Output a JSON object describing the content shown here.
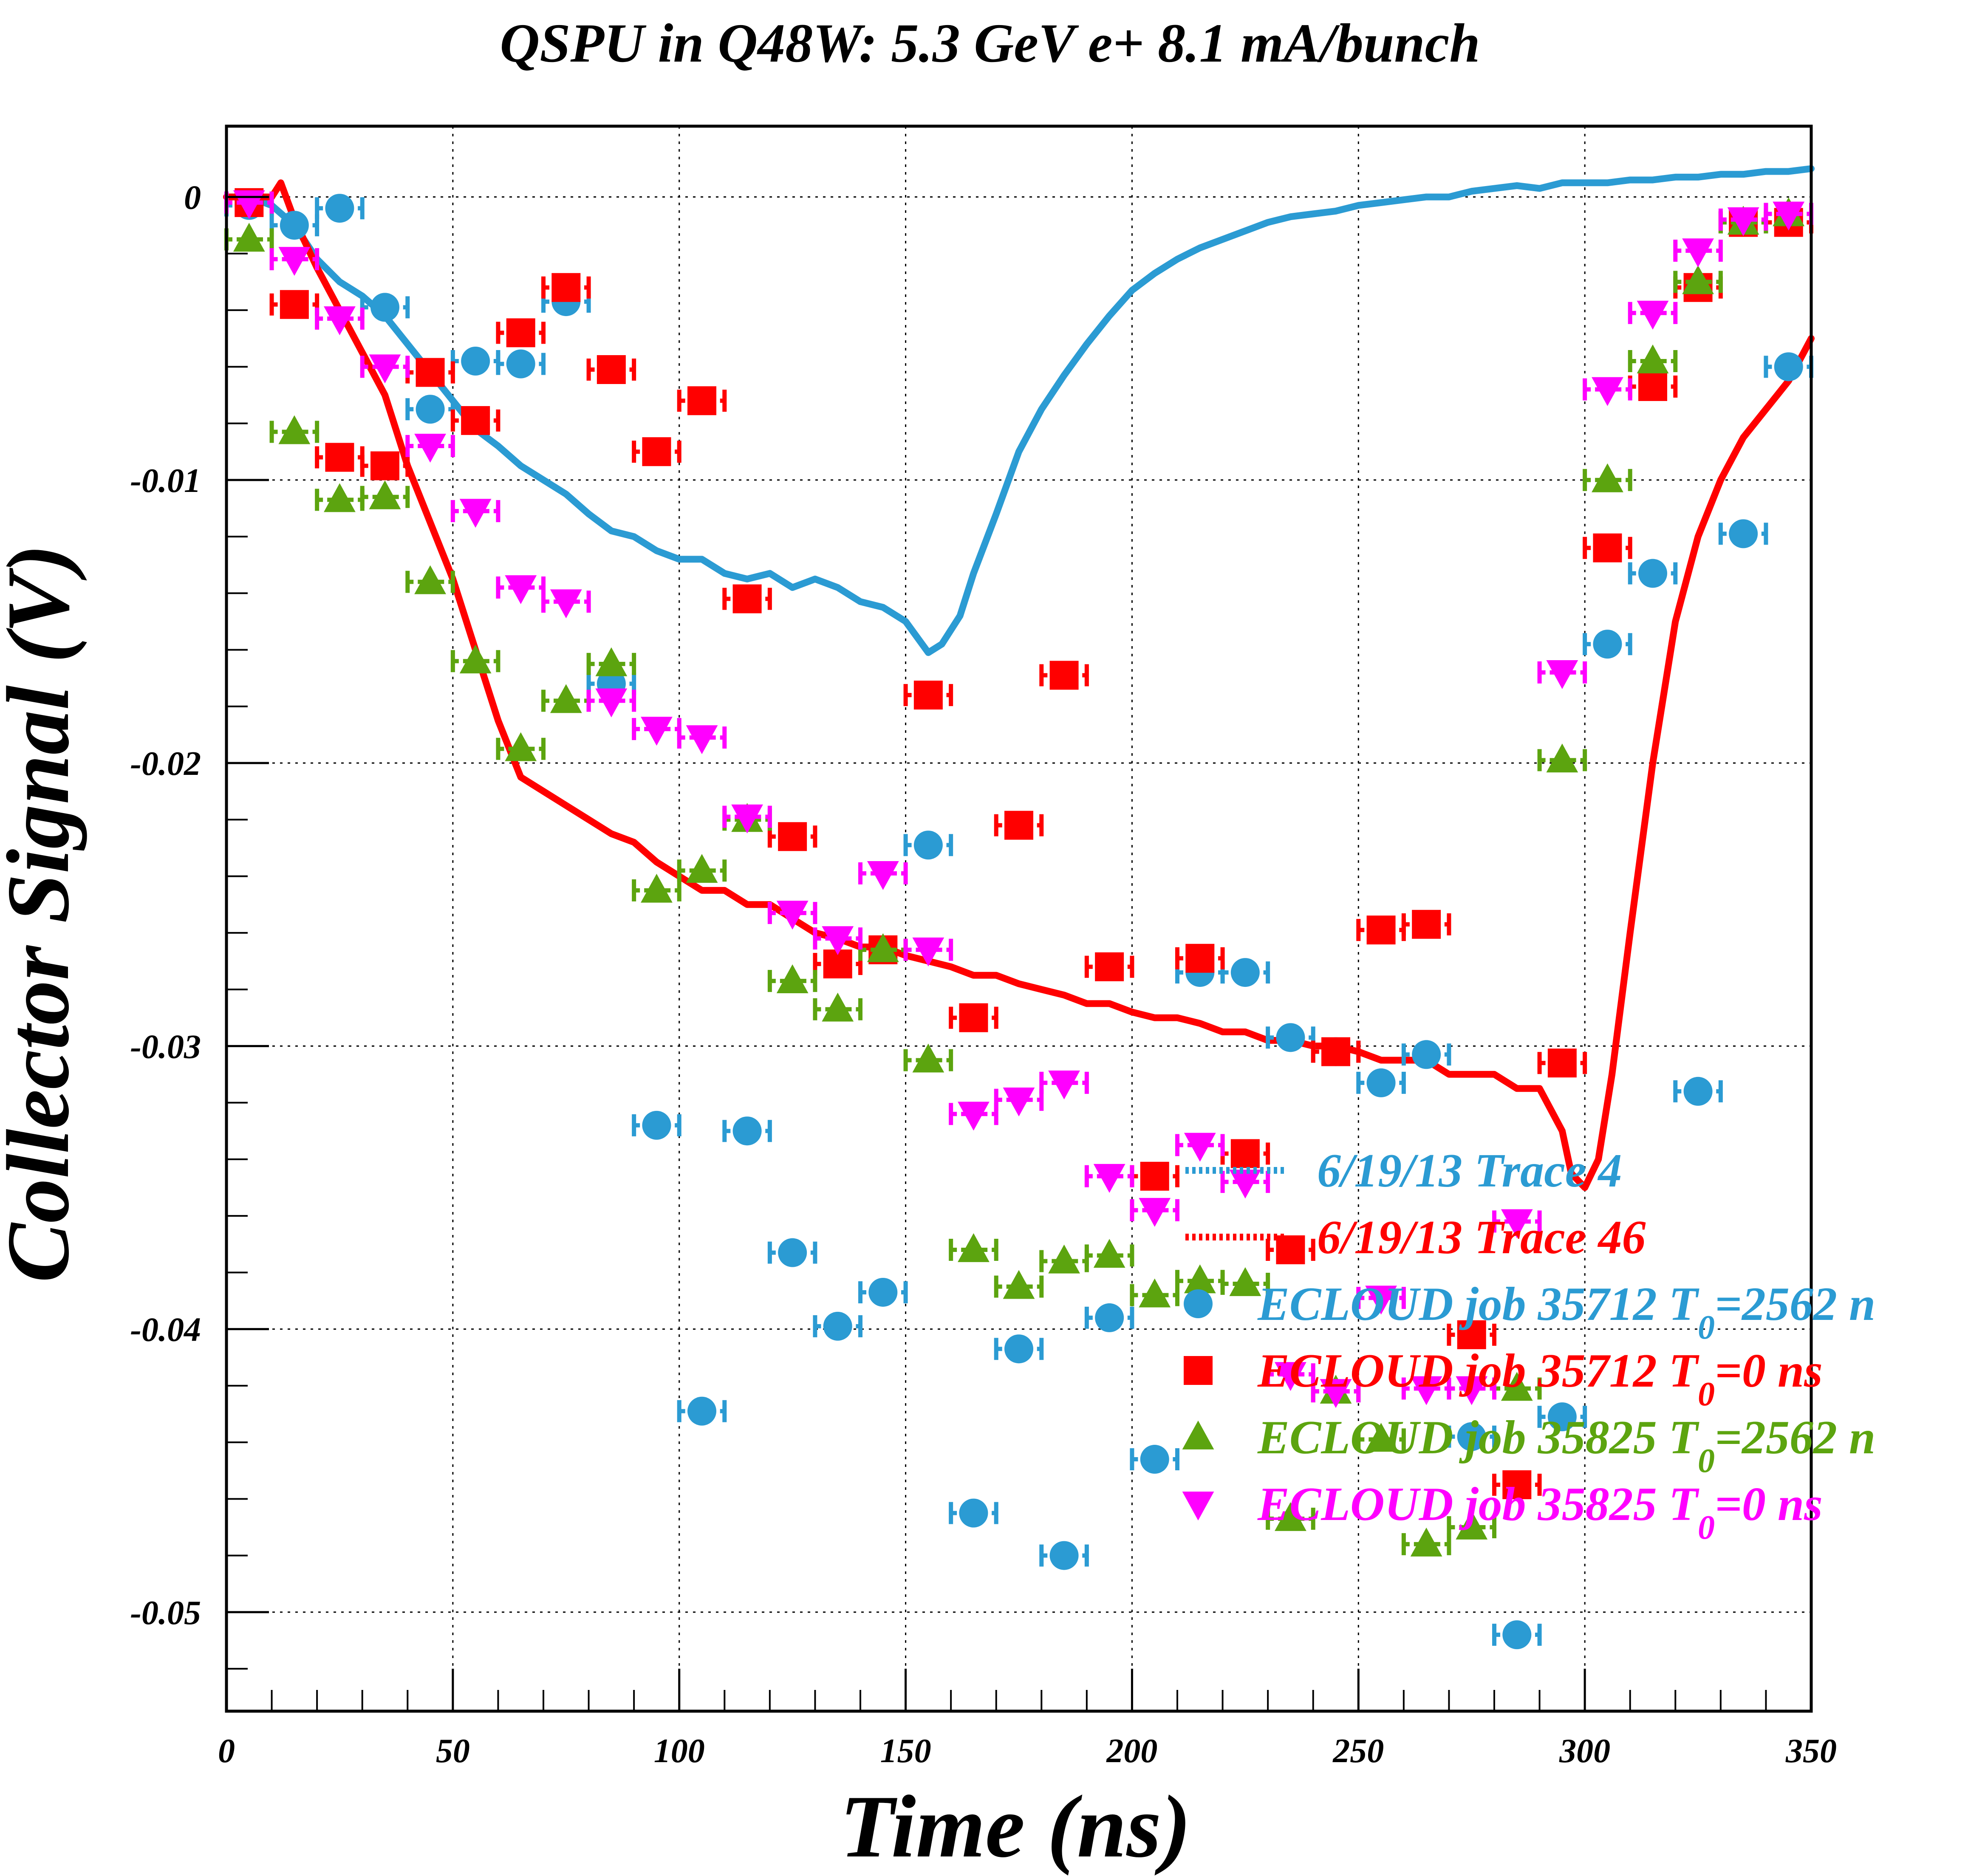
{
  "chart_data": {
    "type": "scatter",
    "title": "QSPU in Q48W: 5.3 GeV e+ 8.1 mA/bunch",
    "xlabel": "Time (ns)",
    "ylabel": "Collector Signal (V)",
    "xlim": [
      0,
      350
    ],
    "ylim": [
      -0.0535,
      0.0025
    ],
    "grid": true,
    "legend_placement": "lower-right (inside plot, overflowing right edge)",
    "x_ticks": [
      0,
      50,
      100,
      150,
      200,
      250,
      300,
      350
    ],
    "x_tick_labels": [
      "0",
      "50",
      "100",
      "150",
      "200",
      "250",
      "300",
      "350"
    ],
    "y_ticks": [
      0,
      -0.01,
      -0.02,
      -0.03,
      -0.04,
      -0.05
    ],
    "y_tick_labels": [
      "0",
      "-0.01",
      "-0.02",
      "-0.03",
      "-0.04",
      "-0.05"
    ],
    "legend": [
      {
        "label": "6/19/13 Trace 4",
        "sub": "",
        "tail": "",
        "color": "#2b9bd3",
        "marker": "line-dotted",
        "series": "trace4"
      },
      {
        "label": "6/19/13 Trace 46",
        "sub": "",
        "tail": "",
        "color": "#ff0000",
        "marker": "line-dotted",
        "series": "trace46"
      },
      {
        "label": "ECLOUD job 35712 T",
        "sub": "0",
        "tail": "=2562 n",
        "color": "#2b9bd3",
        "marker": "circle",
        "series": "ecloud35712_2562"
      },
      {
        "label": "ECLOUD job 35712 T",
        "sub": "0",
        "tail": "=0 ns",
        "color": "#ff0000",
        "marker": "square",
        "series": "ecloud35712_0"
      },
      {
        "label": "ECLOUD job 35825 T",
        "sub": "0",
        "tail": "=2562 n",
        "color": "#5ca40f",
        "marker": "triangle-up",
        "series": "ecloud35825_2562"
      },
      {
        "label": "ECLOUD job 35825 T",
        "sub": "0",
        "tail": "=0 ns",
        "color": "#ff00ff",
        "marker": "triangle-down",
        "series": "ecloud35825_0"
      }
    ],
    "series": [
      {
        "name": "6/19/13 Trace 4",
        "kind": "line",
        "color": "#2b9bd3",
        "x": [
          0,
          5,
          10,
          15,
          20,
          25,
          30,
          35,
          40,
          45,
          50,
          55,
          60,
          65,
          70,
          75,
          80,
          85,
          90,
          95,
          100,
          105,
          110,
          115,
          120,
          125,
          130,
          135,
          140,
          145,
          150,
          155,
          158,
          162,
          165,
          170,
          175,
          180,
          185,
          190,
          195,
          200,
          205,
          210,
          215,
          220,
          225,
          230,
          235,
          240,
          245,
          250,
          255,
          260,
          265,
          270,
          275,
          280,
          285,
          290,
          295,
          300,
          305,
          310,
          315,
          320,
          325,
          330,
          335,
          340,
          345,
          350
        ],
        "y": [
          0,
          0,
          -0.0003,
          -0.001,
          -0.0022,
          -0.003,
          -0.0035,
          -0.0042,
          -0.0052,
          -0.0062,
          -0.0072,
          -0.0082,
          -0.0088,
          -0.0095,
          -0.01,
          -0.0105,
          -0.0112,
          -0.0118,
          -0.012,
          -0.0125,
          -0.0128,
          -0.0128,
          -0.0133,
          -0.0135,
          -0.0133,
          -0.0138,
          -0.0135,
          -0.0138,
          -0.0143,
          -0.0145,
          -0.015,
          -0.0161,
          -0.0158,
          -0.0148,
          -0.0133,
          -0.0112,
          -0.009,
          -0.0075,
          -0.0063,
          -0.0052,
          -0.0042,
          -0.0033,
          -0.0027,
          -0.0022,
          -0.0018,
          -0.0015,
          -0.0012,
          -0.0009,
          -0.0007,
          -0.0006,
          -0.0005,
          -0.0003,
          -0.0002,
          -0.0001,
          0,
          0,
          0.0002,
          0.0003,
          0.0004,
          0.0003,
          0.0005,
          0.0005,
          0.0005,
          0.0006,
          0.0006,
          0.0007,
          0.0007,
          0.0008,
          0.0008,
          0.0009,
          0.0009,
          0.001
        ]
      },
      {
        "name": "6/19/13 Trace 46",
        "kind": "line",
        "color": "#ff0000",
        "x": [
          0,
          5,
          10,
          12,
          15,
          20,
          25,
          30,
          35,
          40,
          45,
          50,
          55,
          60,
          65,
          70,
          75,
          80,
          85,
          90,
          95,
          100,
          105,
          110,
          115,
          120,
          125,
          130,
          135,
          140,
          145,
          150,
          155,
          160,
          165,
          170,
          175,
          180,
          185,
          190,
          195,
          200,
          205,
          210,
          215,
          220,
          225,
          230,
          235,
          240,
          245,
          250,
          255,
          260,
          265,
          270,
          275,
          280,
          285,
          290,
          295,
          297,
          300,
          303,
          306,
          310,
          315,
          320,
          325,
          330,
          335,
          340,
          345,
          350
        ],
        "y": [
          0,
          0,
          0,
          0.0005,
          -0.0008,
          -0.0025,
          -0.004,
          -0.0055,
          -0.007,
          -0.0095,
          -0.0115,
          -0.0135,
          -0.016,
          -0.0185,
          -0.0205,
          -0.021,
          -0.0215,
          -0.022,
          -0.0225,
          -0.0228,
          -0.0235,
          -0.024,
          -0.0245,
          -0.0245,
          -0.025,
          -0.025,
          -0.0255,
          -0.026,
          -0.0262,
          -0.0265,
          -0.0265,
          -0.0268,
          -0.027,
          -0.0272,
          -0.0275,
          -0.0275,
          -0.0278,
          -0.028,
          -0.0282,
          -0.0285,
          -0.0285,
          -0.0288,
          -0.029,
          -0.029,
          -0.0292,
          -0.0295,
          -0.0295,
          -0.0298,
          -0.0298,
          -0.03,
          -0.03,
          -0.0302,
          -0.0305,
          -0.0305,
          -0.0305,
          -0.031,
          -0.031,
          -0.031,
          -0.0315,
          -0.0315,
          -0.033,
          -0.0345,
          -0.035,
          -0.034,
          -0.031,
          -0.026,
          -0.02,
          -0.015,
          -0.012,
          -0.01,
          -0.0085,
          -0.0075,
          -0.0065,
          -0.005
        ]
      },
      {
        "name": "ECLOUD job 35712 T0=2562 n",
        "kind": "markers",
        "marker": "circle",
        "color": "#2b9bd3",
        "x": [
          5,
          15,
          25,
          35,
          45,
          55,
          65,
          75,
          85,
          95,
          105,
          115,
          125,
          135,
          145,
          155,
          165,
          175,
          185,
          195,
          205,
          215,
          225,
          235,
          245,
          255,
          265,
          275,
          285,
          295,
          305,
          315,
          325,
          335,
          345
        ],
        "y": [
          -0.0003,
          -0.001,
          -0.0004,
          -0.0039,
          -0.0075,
          -0.0058,
          -0.0059,
          -0.0037,
          -0.0172,
          -0.0328,
          -0.0429,
          -0.033,
          -0.0373,
          -0.0399,
          -0.0387,
          -0.0229,
          -0.0465,
          -0.0407,
          -0.048,
          -0.0396,
          -0.0446,
          -0.0274,
          -0.0274,
          -0.0297,
          -0.0302,
          -0.0313,
          -0.0303,
          -0.0438,
          -0.0508,
          -0.0431,
          -0.0158,
          -0.0133,
          -0.0316,
          -0.0119,
          -0.006
        ]
      },
      {
        "name": "ECLOUD job 35712 T0=0 ns",
        "kind": "markers",
        "marker": "square",
        "color": "#ff0000",
        "x": [
          5,
          15,
          25,
          35,
          45,
          55,
          65,
          75,
          85,
          95,
          105,
          115,
          125,
          135,
          145,
          155,
          165,
          175,
          185,
          195,
          205,
          215,
          225,
          235,
          245,
          255,
          265,
          275,
          285,
          295,
          305,
          315,
          325,
          335,
          345
        ],
        "y": [
          -0.0002,
          -0.0038,
          -0.0092,
          -0.0095,
          -0.0062,
          -0.0079,
          -0.0048,
          -0.0032,
          -0.0061,
          -0.009,
          -0.0072,
          -0.0142,
          -0.0226,
          -0.0271,
          -0.0266,
          -0.0176,
          -0.029,
          -0.0222,
          -0.0169,
          -0.0272,
          -0.0346,
          -0.0269,
          -0.0338,
          -0.0372,
          -0.0302,
          -0.0259,
          -0.0257,
          -0.0402,
          -0.0455,
          -0.0306,
          -0.0124,
          -0.0067,
          -0.0032,
          -0.0009,
          -0.0009
        ]
      },
      {
        "name": "ECLOUD job 35825 T0=2562 n",
        "kind": "markers",
        "marker": "triangle-up",
        "color": "#5ca40f",
        "x": [
          5,
          15,
          25,
          35,
          45,
          55,
          65,
          75,
          85,
          95,
          105,
          115,
          125,
          135,
          145,
          155,
          165,
          175,
          185,
          195,
          205,
          215,
          225,
          235,
          245,
          255,
          265,
          275,
          285,
          295,
          305,
          315,
          325,
          335,
          345
        ],
        "y": [
          -0.0015,
          -0.0083,
          -0.0107,
          -0.0106,
          -0.0136,
          -0.0164,
          -0.0195,
          -0.0178,
          -0.0165,
          -0.0245,
          -0.0238,
          -0.022,
          -0.0277,
          -0.0287,
          -0.0266,
          -0.0305,
          -0.0372,
          -0.0385,
          -0.0376,
          -0.0374,
          -0.0388,
          -0.0383,
          -0.0384,
          -0.0467,
          -0.0422,
          -0.0439,
          -0.0476,
          -0.047,
          -0.0421,
          -0.0199,
          -0.01,
          -0.0058,
          -0.003,
          -0.0009,
          -0.0006
        ]
      },
      {
        "name": "ECLOUD job 35825 T0=0 ns",
        "kind": "markers",
        "marker": "triangle-down",
        "color": "#ff00ff",
        "x": [
          5,
          15,
          25,
          35,
          45,
          55,
          65,
          75,
          85,
          95,
          105,
          115,
          125,
          135,
          145,
          155,
          165,
          175,
          185,
          195,
          205,
          215,
          225,
          235,
          245,
          255,
          265,
          275,
          285,
          295,
          305,
          315,
          325,
          335,
          345
        ],
        "y": [
          -0.0002,
          -0.0022,
          -0.0043,
          -0.006,
          -0.0088,
          -0.0111,
          -0.0138,
          -0.0143,
          -0.0178,
          -0.0188,
          -0.0191,
          -0.0219,
          -0.0253,
          -0.0262,
          -0.0239,
          -0.0266,
          -0.0324,
          -0.0319,
          -0.0313,
          -0.0346,
          -0.0358,
          -0.0335,
          -0.0348,
          -0.0416,
          -0.0422,
          -0.0389,
          -0.0421,
          -0.0421,
          -0.0362,
          -0.0168,
          -0.0068,
          -0.0041,
          -0.0019,
          -0.0008,
          -0.0006
        ]
      }
    ]
  }
}
